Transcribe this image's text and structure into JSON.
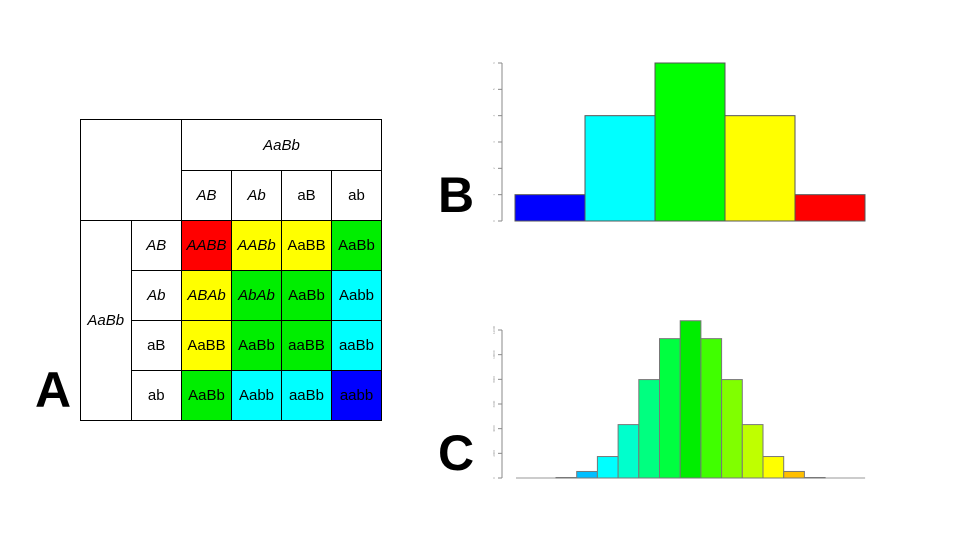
{
  "panels": {
    "a": "A",
    "b": "B",
    "c": "C"
  },
  "punnett": {
    "parent_top": "AaBb",
    "parent_left": "AaBb",
    "col_gametes": [
      {
        "t": "AB",
        "italic": true
      },
      {
        "t": "Ab",
        "italic": true
      },
      {
        "t": "aB",
        "italic": false
      },
      {
        "t": "ab",
        "italic": false
      }
    ],
    "rows": [
      {
        "gamete": "AB",
        "italic": true,
        "cells": [
          {
            "t": "AABB",
            "c": "#ff0000",
            "i": true
          },
          {
            "t": "AABb",
            "c": "#ffff00",
            "i": true
          },
          {
            "t": "AaBB",
            "c": "#ffff00",
            "i": false
          },
          {
            "t": "AaBb",
            "c": "#00ee00",
            "i": false
          }
        ]
      },
      {
        "gamete": "Ab",
        "italic": true,
        "cells": [
          {
            "t": "ABAb",
            "c": "#ffff00",
            "i": true
          },
          {
            "t": "AbAb",
            "c": "#00ee00",
            "i": true
          },
          {
            "t": "AaBb",
            "c": "#00ee00",
            "i": false
          },
          {
            "t": "Aabb",
            "c": "#00ffff",
            "i": false
          }
        ]
      },
      {
        "gamete": "aB",
        "italic": false,
        "cells": [
          {
            "t": "AaBB",
            "c": "#ffff00",
            "i": false
          },
          {
            "t": "AaBb",
            "c": "#00ee00",
            "i": false
          },
          {
            "t": "aaBB",
            "c": "#00ee00",
            "i": false
          },
          {
            "t": "aaBb",
            "c": "#00ffff",
            "i": false
          }
        ]
      },
      {
        "gamete": "ab",
        "italic": false,
        "cells": [
          {
            "t": "AaBb",
            "c": "#00ee00",
            "i": false
          },
          {
            "t": "Aabb",
            "c": "#00ffff",
            "i": false
          },
          {
            "t": "aaBb",
            "c": "#00ffff",
            "i": false
          },
          {
            "t": "aabb",
            "c": "#0000ff",
            "i": false
          }
        ]
      }
    ]
  },
  "chart_data": [
    {
      "type": "bar",
      "values": [
        1,
        4,
        6,
        4,
        1
      ],
      "colors": [
        "#0000ff",
        "#00ffff",
        "#00ff00",
        "#ffff00",
        "#ff0000"
      ],
      "ylim": [
        0,
        6
      ],
      "yticks": [
        0,
        1,
        2,
        3,
        4,
        5,
        6
      ]
    },
    {
      "type": "bar",
      "values": [
        40,
        530,
        1740,
        4330,
        7980,
        11300,
        12750,
        11300,
        7980,
        4330,
        1740,
        530,
        40
      ],
      "colors": [
        "#1f5fbf",
        "#00bfff",
        "#00ffff",
        "#00ffcc",
        "#00ff80",
        "#00ff40",
        "#00ee00",
        "#40ff00",
        "#80ff00",
        "#bfff00",
        "#ffff00",
        "#ffbf00",
        "#ff8000"
      ],
      "ylim": [
        0,
        12000
      ],
      "yticks": [
        0,
        2000,
        4000,
        6000,
        8000,
        10000,
        12000
      ]
    }
  ]
}
